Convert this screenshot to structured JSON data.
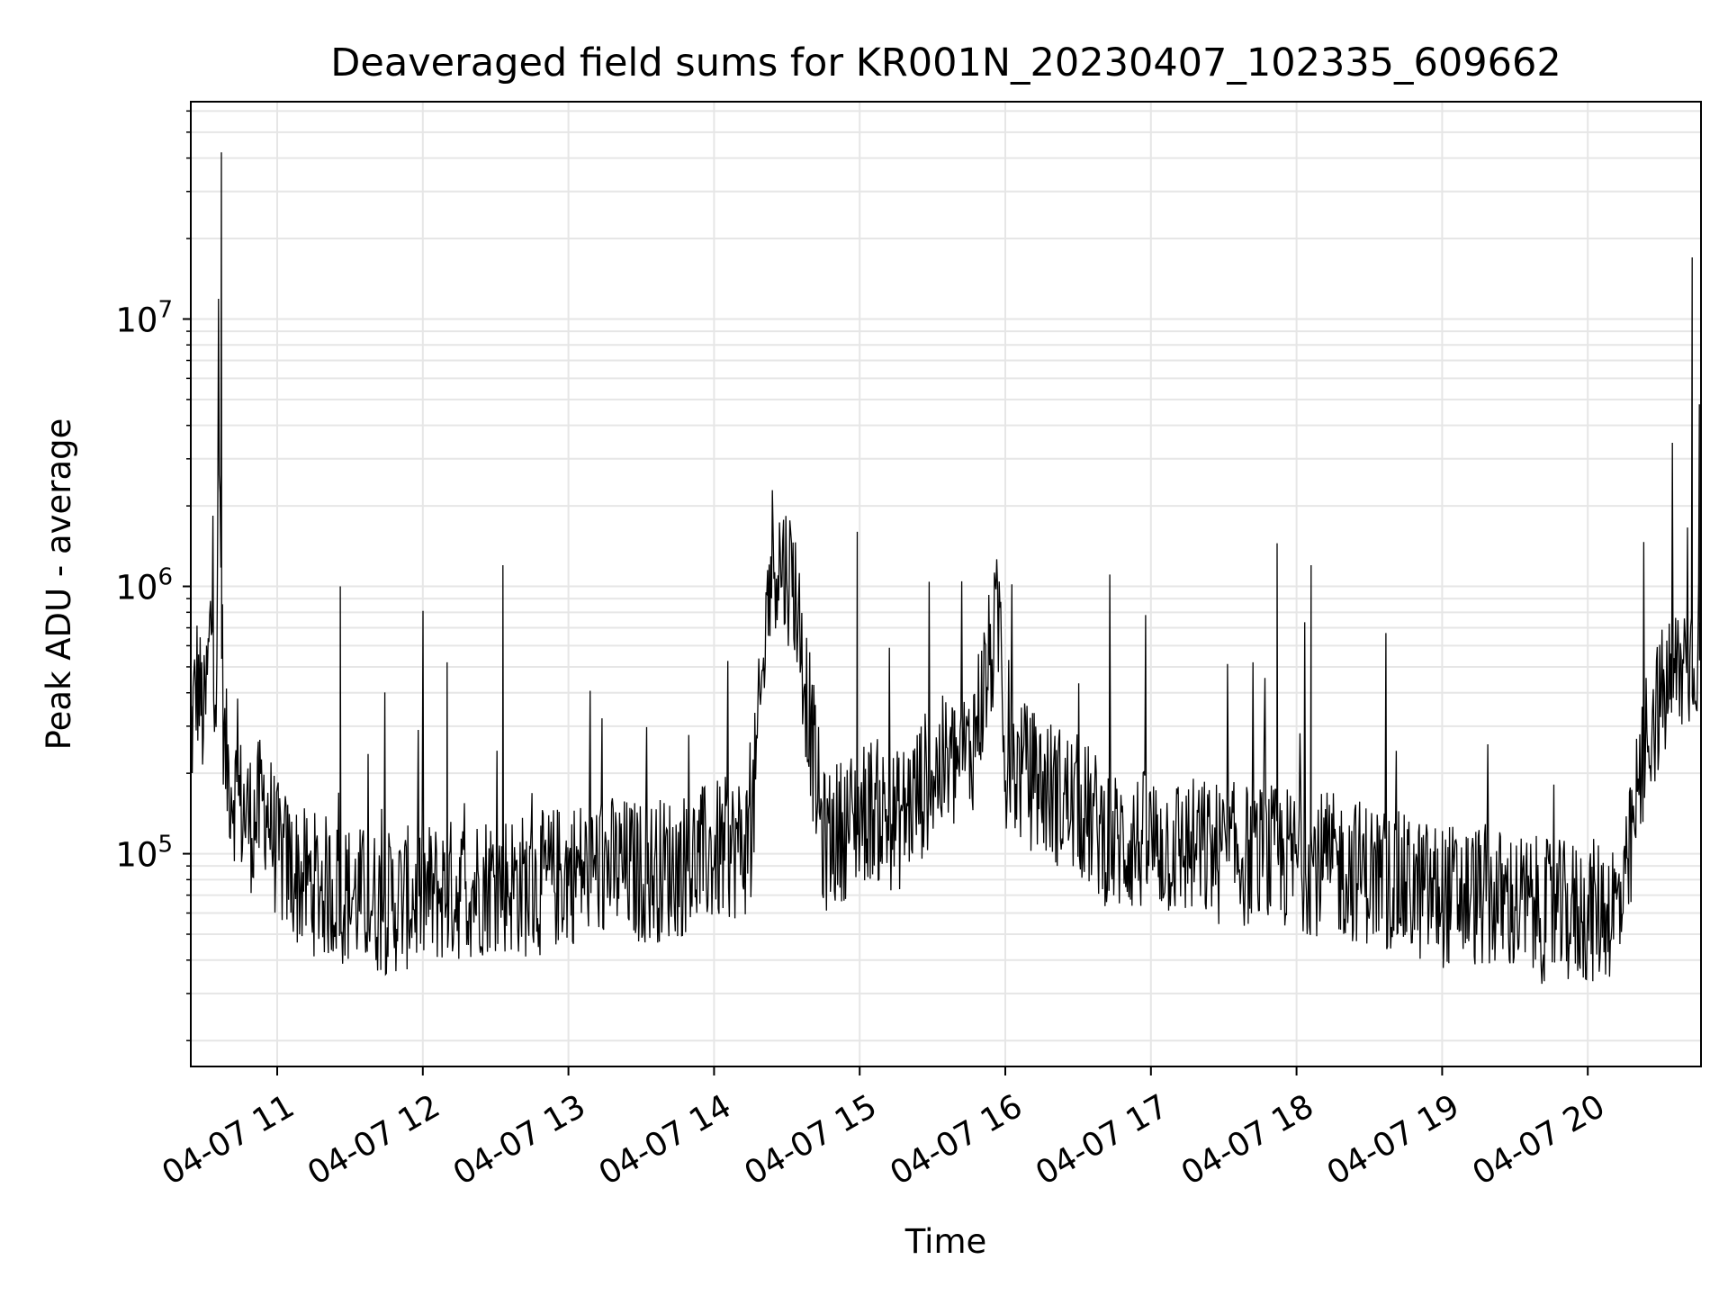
{
  "chart_data": {
    "type": "line",
    "title": "Deaveraged field sums for KR001N_20230407_102335_609662",
    "xlabel": "Time",
    "ylabel": "Peak ADU - average",
    "y_scale": "log",
    "ylim": [
      16000,
      65000000
    ],
    "x_range": [
      "2023-04-07 10:24",
      "2023-04-07 20:47"
    ],
    "x_tick_labels": [
      "04-07 11",
      "04-07 12",
      "04-07 13",
      "04-07 14",
      "04-07 15",
      "04-07 16",
      "04-07 17",
      "04-07 18",
      "04-07 19",
      "04-07 20"
    ],
    "x_tick_times": [
      "2023-04-07 11:00",
      "2023-04-07 12:00",
      "2023-04-07 13:00",
      "2023-04-07 14:00",
      "2023-04-07 15:00",
      "2023-04-07 16:00",
      "2023-04-07 17:00",
      "2023-04-07 18:00",
      "2023-04-07 19:00",
      "2023-04-07 20:00"
    ],
    "y_ticks": [
      {
        "base": "10",
        "exp": "5",
        "value": 100000
      },
      {
        "base": "10",
        "exp": "6",
        "value": 1000000
      },
      {
        "base": "10",
        "exp": "7",
        "value": 10000000
      }
    ],
    "grid": true,
    "line_color": "#000000",
    "grid_color": "#e6e6e6",
    "series": [
      {
        "points": [
          [
            "2023-04-07 10:24",
            250000
          ],
          [
            "2023-04-07 10:27",
            450000
          ],
          [
            "2023-04-07 10:30",
            300000
          ],
          [
            "2023-04-07 10:33",
            800000
          ],
          [
            "2023-04-07 10:35",
            400000
          ],
          [
            "2023-04-07 10:36",
            3300000
          ],
          [
            "2023-04-07 10:37",
            42000000
          ],
          [
            "2023-04-07 10:38",
            250000
          ],
          [
            "2023-04-07 10:40",
            200000
          ],
          [
            "2023-04-07 10:45",
            150000
          ],
          [
            "2023-04-07 10:50",
            130000
          ],
          [
            "2023-04-07 10:55",
            160000
          ],
          [
            "2023-04-07 11:00",
            100000
          ],
          [
            "2023-04-07 11:10",
            80000
          ],
          [
            "2023-04-07 11:20",
            75000
          ],
          [
            "2023-04-07 11:26",
            1000000
          ],
          [
            "2023-04-07 11:30",
            70000
          ],
          [
            "2023-04-07 11:45",
            65000
          ],
          [
            "2023-04-07 12:00",
            70000
          ],
          [
            "2023-04-07 12:10",
            520000
          ],
          [
            "2023-04-07 12:20",
            75000
          ],
          [
            "2023-04-07 12:30",
            80000
          ],
          [
            "2023-04-07 12:33",
            1200000
          ],
          [
            "2023-04-07 12:45",
            75000
          ],
          [
            "2023-04-07 13:00",
            85000
          ],
          [
            "2023-04-07 13:15",
            90000
          ],
          [
            "2023-04-07 13:30",
            85000
          ],
          [
            "2023-04-07 13:45",
            90000
          ],
          [
            "2023-04-07 14:00",
            100000
          ],
          [
            "2023-04-07 14:15",
            110000
          ],
          [
            "2023-04-07 14:24",
            1350000
          ],
          [
            "2023-04-07 14:33",
            1050000
          ],
          [
            "2023-04-07 14:45",
            110000
          ],
          [
            "2023-04-07 14:59",
            1600000
          ],
          [
            "2023-04-07 15:05",
            150000
          ],
          [
            "2023-04-07 15:15",
            130000
          ],
          [
            "2023-04-07 15:30",
            200000
          ],
          [
            "2023-04-07 15:45",
            230000
          ],
          [
            "2023-04-07 15:58",
            800000
          ],
          [
            "2023-04-07 16:00",
            220000
          ],
          [
            "2023-04-07 16:15",
            180000
          ],
          [
            "2023-04-07 16:30",
            150000
          ],
          [
            "2023-04-07 16:45",
            110000
          ],
          [
            "2023-04-07 17:00",
            110000
          ],
          [
            "2023-04-07 17:15",
            105000
          ],
          [
            "2023-04-07 17:30",
            100000
          ],
          [
            "2023-04-07 17:52",
            1450000
          ],
          [
            "2023-04-07 18:00",
            95000
          ],
          [
            "2023-04-07 18:06",
            1200000
          ],
          [
            "2023-04-07 18:15",
            90000
          ],
          [
            "2023-04-07 18:30",
            85000
          ],
          [
            "2023-04-07 18:45",
            75000
          ],
          [
            "2023-04-07 19:00",
            70000
          ],
          [
            "2023-04-07 19:15",
            70000
          ],
          [
            "2023-04-07 19:30",
            65000
          ],
          [
            "2023-04-07 19:45",
            60000
          ],
          [
            "2023-04-07 20:00",
            60000
          ],
          [
            "2023-04-07 20:15",
            65000
          ],
          [
            "2023-04-07 20:20",
            150000
          ],
          [
            "2023-04-07 20:25",
            300000
          ],
          [
            "2023-04-07 20:35",
            450000
          ],
          [
            "2023-04-07 20:43",
            17000000
          ],
          [
            "2023-04-07 20:45",
            600000
          ],
          [
            "2023-04-07 20:46",
            4800000
          ],
          [
            "2023-04-07 20:47",
            700000
          ]
        ]
      }
    ]
  }
}
